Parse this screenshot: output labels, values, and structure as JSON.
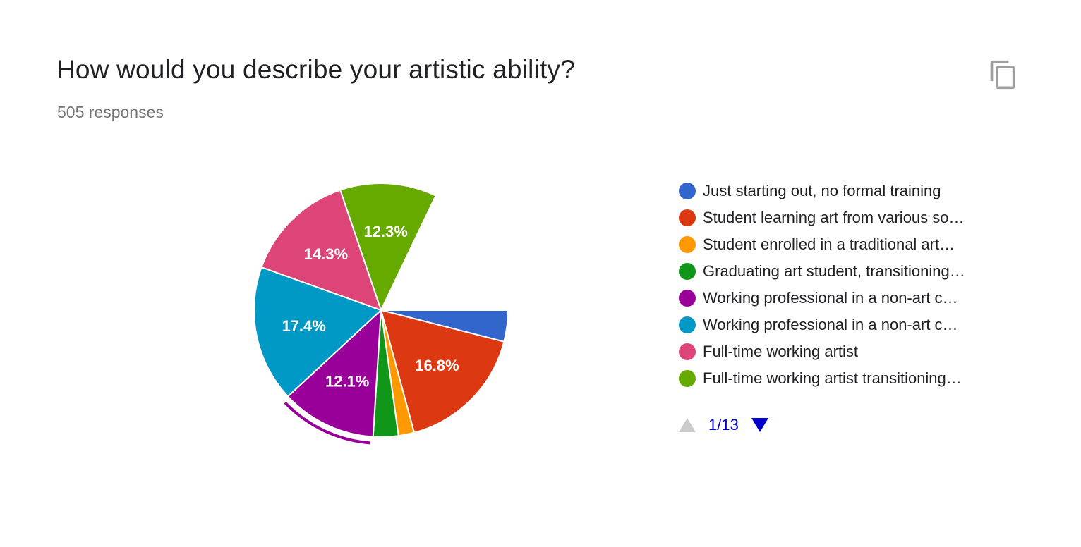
{
  "header": {
    "title": "How would you describe your artistic ability?",
    "responses": "505 responses",
    "copy_icon": "copy-icon"
  },
  "chart_data": {
    "type": "pie",
    "slices": [
      {
        "label": "Just starting out, no formal training",
        "value": 4.0,
        "display": "",
        "color": "#3366cc"
      },
      {
        "label": "Student learning art from various so…",
        "value": 16.8,
        "display": "16.8%",
        "color": "#dc3912"
      },
      {
        "label": "Student enrolled in a traditional art…",
        "value": 2.0,
        "display": "",
        "color": "#ff9900"
      },
      {
        "label": "Graduating art student, transitioning…",
        "value": 3.2,
        "display": "",
        "color": "#109618"
      },
      {
        "label": "Working professional in a non-art c…",
        "value": 12.1,
        "display": "12.1%",
        "color": "#990099"
      },
      {
        "label": "Working professional in a non-art c…",
        "value": 17.4,
        "display": "17.4%",
        "color": "#0099c6"
      },
      {
        "label": "Full-time working artist",
        "value": 14.3,
        "display": "14.3%",
        "color": "#dd4477"
      },
      {
        "label": "Full-time working artist transitioning…",
        "value": 12.3,
        "display": "12.3%",
        "color": "#66aa00"
      },
      {
        "label": "",
        "value": 17.9,
        "display": "",
        "color": "#ffffff"
      }
    ],
    "highlighted_slice": 4,
    "legend_position": "right"
  },
  "legend": {
    "items": [
      {
        "label": "Just starting out, no formal training",
        "color": "#3366cc"
      },
      {
        "label": "Student learning art from various so…",
        "color": "#dc3912"
      },
      {
        "label": "Student enrolled in a traditional art…",
        "color": "#ff9900"
      },
      {
        "label": "Graduating art student, transitioning…",
        "color": "#109618"
      },
      {
        "label": "Working professional in a non-art c…",
        "color": "#990099"
      },
      {
        "label": "Working professional in a non-art c…",
        "color": "#0099c6"
      },
      {
        "label": "Full-time working artist",
        "color": "#dd4477"
      },
      {
        "label": "Full-time working artist transitioning…",
        "color": "#66aa00"
      }
    ]
  },
  "pager": {
    "label": "1/13",
    "up_icon": "triangle-up-icon",
    "down_icon": "triangle-down-icon",
    "up_color": "#cccccc",
    "down_color": "#0000cc"
  }
}
